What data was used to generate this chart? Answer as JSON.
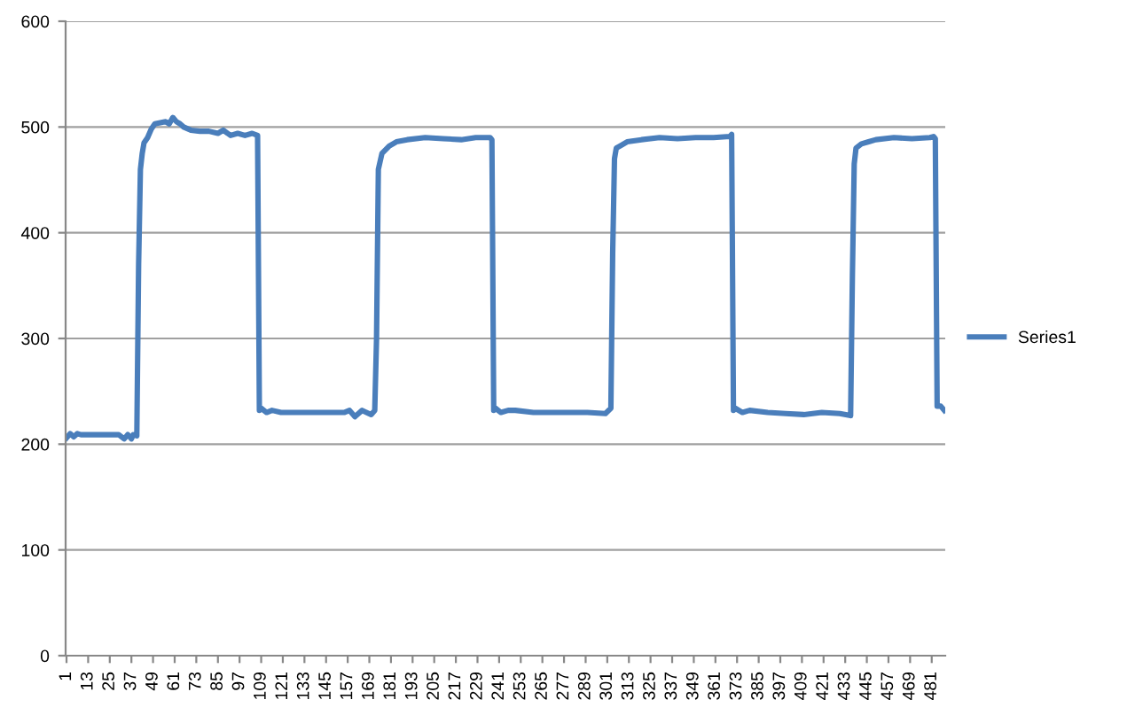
{
  "chart_data": {
    "type": "line",
    "legend": "right",
    "grid": "y",
    "marker": "none",
    "line_style": "solid",
    "xlim": [
      0.5,
      488.5
    ],
    "xticks": [
      1,
      13,
      25,
      37,
      49,
      61,
      73,
      85,
      97,
      109,
      121,
      133,
      145,
      157,
      169,
      181,
      193,
      205,
      217,
      229,
      241,
      253,
      265,
      277,
      289,
      301,
      313,
      325,
      337,
      349,
      361,
      373,
      385,
      397,
      409,
      421,
      433,
      445,
      457,
      469,
      481
    ],
    "ylim": [
      0,
      600
    ],
    "yticks": [
      0,
      100,
      200,
      300,
      400,
      500,
      600
    ],
    "series": [
      {
        "name": "Series1",
        "color": "#4a7ebb",
        "x": [
          1,
          3,
          5,
          7,
          9,
          12,
          15,
          20,
          25,
          30,
          33,
          35,
          37,
          38,
          40,
          41,
          42,
          43,
          44,
          46,
          48,
          50,
          53,
          56,
          58,
          60,
          62,
          64,
          66,
          70,
          75,
          80,
          85,
          88,
          92,
          96,
          100,
          104,
          107,
          108,
          109,
          112,
          115,
          120,
          130,
          140,
          150,
          155,
          158,
          161,
          165,
          170,
          172,
          173,
          174,
          176,
          180,
          184,
          190,
          200,
          210,
          220,
          228,
          236,
          237,
          238,
          239,
          242,
          246,
          250,
          260,
          270,
          280,
          290,
          300,
          303,
          304,
          305,
          306,
          308,
          312,
          320,
          330,
          340,
          350,
          360,
          369,
          370,
          371,
          372,
          376,
          380,
          390,
          400,
          410,
          420,
          430,
          436,
          437,
          438,
          439,
          442,
          446,
          450,
          460,
          470,
          480,
          482,
          483,
          484,
          486,
          488
        ],
        "values": [
          206,
          210,
          207,
          210,
          209,
          209,
          209,
          209,
          209,
          209,
          205,
          209,
          205,
          209,
          208,
          370,
          460,
          475,
          485,
          490,
          498,
          503,
          504,
          505,
          503,
          509,
          505,
          503,
          500,
          497,
          496,
          496,
          494,
          497,
          492,
          494,
          492,
          494,
          492,
          232,
          234,
          230,
          232,
          230,
          230,
          230,
          230,
          230,
          232,
          226,
          232,
          228,
          232,
          300,
          460,
          475,
          482,
          486,
          488,
          490,
          489,
          488,
          490,
          490,
          488,
          232,
          234,
          230,
          232,
          232,
          230,
          230,
          230,
          230,
          229,
          234,
          380,
          470,
          480,
          482,
          486,
          488,
          490,
          489,
          490,
          490,
          491,
          493,
          232,
          234,
          230,
          232,
          230,
          229,
          228,
          230,
          229,
          227,
          360,
          465,
          480,
          484,
          486,
          488,
          490,
          489,
          490,
          491,
          489,
          236,
          236,
          232
        ]
      }
    ]
  }
}
